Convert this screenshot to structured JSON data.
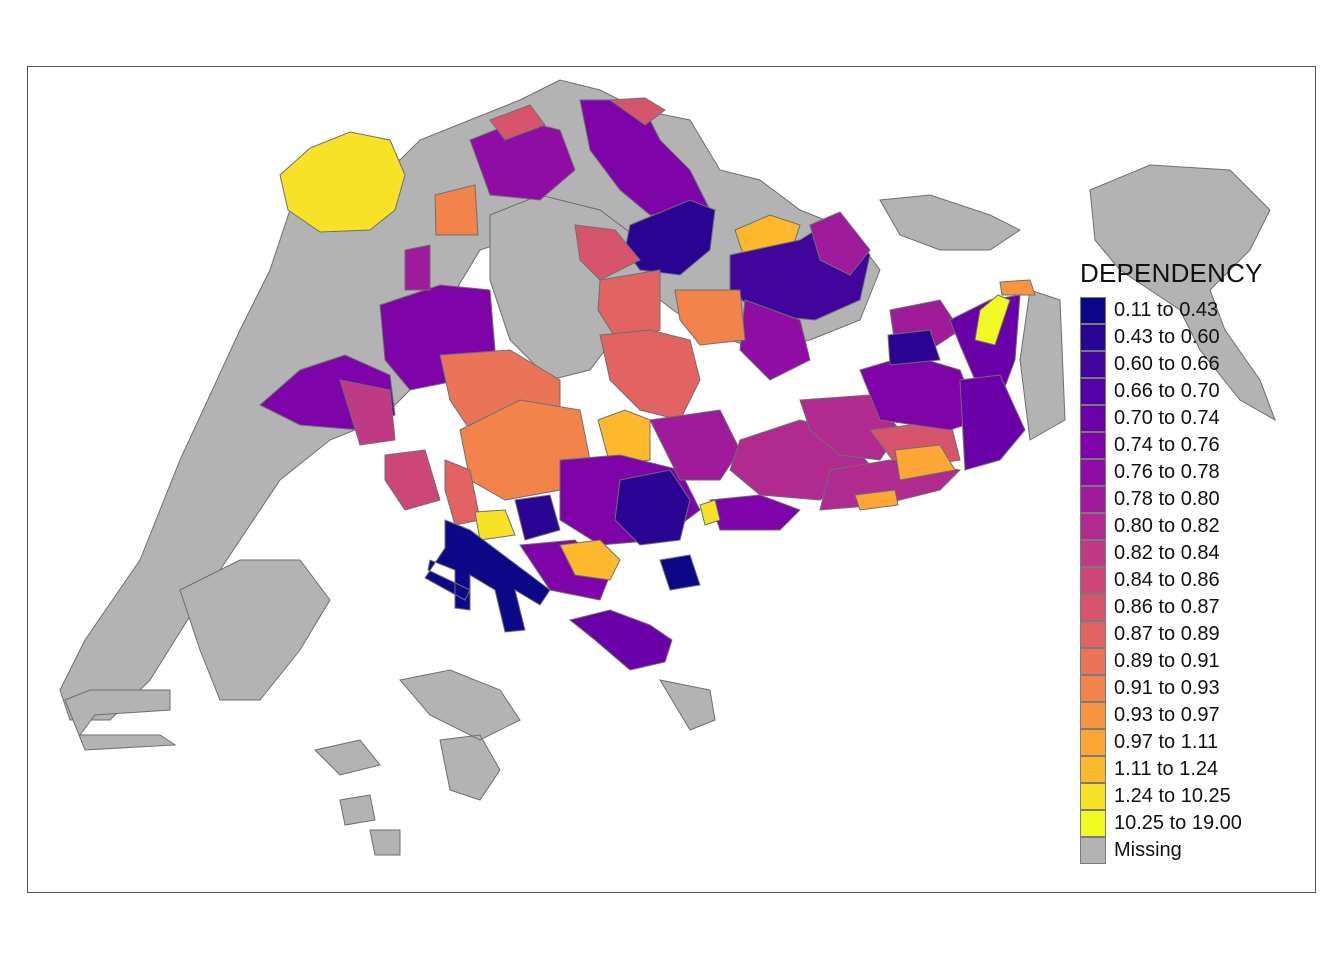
{
  "legend": {
    "title": "DEPENDENCY",
    "classes": [
      {
        "label": "0.11 to 0.43",
        "color": "#0d0887"
      },
      {
        "label": "0.43 to 0.60",
        "color": "#2a0593"
      },
      {
        "label": "0.60 to 0.66",
        "color": "#41049d"
      },
      {
        "label": "0.66 to 0.70",
        "color": "#5402a3"
      },
      {
        "label": "0.70 to 0.74",
        "color": "#6a00a8"
      },
      {
        "label": "0.74 to 0.76",
        "color": "#7e03a8"
      },
      {
        "label": "0.76 to 0.78",
        "color": "#8f0da4"
      },
      {
        "label": "0.78 to 0.80",
        "color": "#a01a9c"
      },
      {
        "label": "0.80 to 0.82",
        "color": "#b12a90"
      },
      {
        "label": "0.82 to 0.84",
        "color": "#bf3984"
      },
      {
        "label": "0.84 to 0.86",
        "color": "#cc4778"
      },
      {
        "label": "0.86 to 0.87",
        "color": "#d6556d"
      },
      {
        "label": "0.87 to 0.89",
        "color": "#e16462"
      },
      {
        "label": "0.89 to 0.91",
        "color": "#ea7457"
      },
      {
        "label": "0.91 to 0.93",
        "color": "#f2844b"
      },
      {
        "label": "0.93 to 0.97",
        "color": "#f89540"
      },
      {
        "label": "0.97 to 1.11",
        "color": "#fca636"
      },
      {
        "label": "1.11 to 1.24",
        "color": "#fdb92b"
      },
      {
        "label": "1.24 to 10.25",
        "color": "#f7e225"
      },
      {
        "label": "10.25 to 19.00",
        "color": "#f0f921"
      },
      {
        "label": "Missing",
        "color": "#b3b3b3"
      }
    ]
  }
}
